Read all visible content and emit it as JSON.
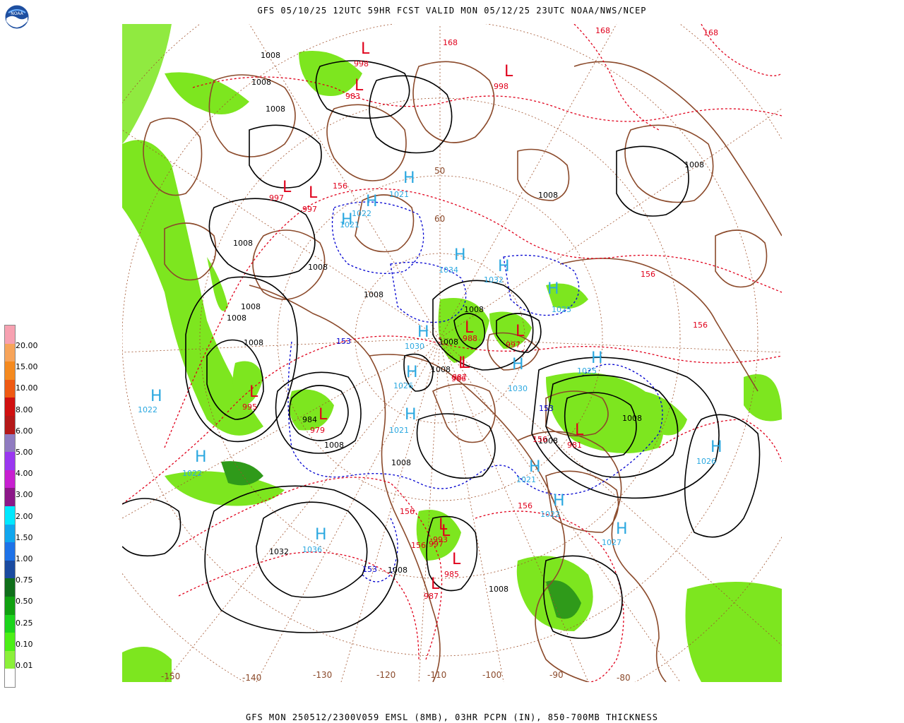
{
  "title": "GFS 05/10/25 12UTC 59HR FCST VALID MON 05/12/25 23UTC NOAA/NWS/NCEP",
  "footer": "GFS MON 250512/2300V059 EMSL (8MB), 03HR PCPN (IN), 850-700MB THICKNESS",
  "logo_text": "NOAA",
  "legend": {
    "labels": [
      "20.00",
      "15.00",
      "10.00",
      "8.00",
      "6.00",
      "5.00",
      "4.00",
      "3.00",
      "2.00",
      "1.50",
      "1.00",
      "0.75",
      "0.50",
      "0.25",
      "0.10",
      "0.01"
    ],
    "colors": [
      "#f7a1b1",
      "#f7a45a",
      "#f58a1f",
      "#ef5a13",
      "#d01010",
      "#b41818",
      "#8f7bc0",
      "#9a37f0",
      "#c71fd0",
      "#8c1788",
      "#00e8ff",
      "#10a6ee",
      "#1e72e8",
      "#1a4aa0",
      "#0f6e1a",
      "#10a010",
      "#1cd41c",
      "#4cef16",
      "#8cf03a",
      "#ffffff"
    ]
  },
  "colors": {
    "coast": "#8b4a2b",
    "precip": "#7de61f",
    "precip_dark": "#2f9a1a",
    "isobar": "#000000",
    "thickness_red": "#e0001b",
    "thickness_blue": "#0000d0",
    "high_label": "#2ba8e0",
    "low_label": "#e0001b",
    "graticule": "#a0522d"
  },
  "lon_labels": [
    "-150",
    "-140",
    "-130",
    "-120",
    "-110",
    "-100",
    "-90",
    "-80"
  ],
  "lat_labels": [
    "50",
    "60"
  ],
  "highs": [
    {
      "letter": "H",
      "value": "1022"
    },
    {
      "letter": "H",
      "value": "1022"
    },
    {
      "letter": "H",
      "value": "1036"
    },
    {
      "letter": "H",
      "value": "1021"
    },
    {
      "letter": "H",
      "value": "1026"
    },
    {
      "letter": "H",
      "value": "1030"
    },
    {
      "letter": "H",
      "value": "1032"
    },
    {
      "letter": "H",
      "value": "1034"
    },
    {
      "letter": "H",
      "value": "1025"
    },
    {
      "letter": "H",
      "value": "1025"
    },
    {
      "letter": "H",
      "value": "1026"
    },
    {
      "letter": "H",
      "value": "1027"
    },
    {
      "letter": "H",
      "value": "1022"
    },
    {
      "letter": "H",
      "value": "1021"
    },
    {
      "letter": "H",
      "value": "1021"
    },
    {
      "letter": "H",
      "value": "1022"
    },
    {
      "letter": "H",
      "value": "1021"
    },
    {
      "letter": "H",
      "value": "1030"
    }
  ],
  "lows": [
    {
      "letter": "L",
      "value": "995"
    },
    {
      "letter": "L",
      "value": "979"
    },
    {
      "letter": "L",
      "value": "988"
    },
    {
      "letter": "L",
      "value": "997"
    },
    {
      "letter": "L",
      "value": "987"
    },
    {
      "letter": "L",
      "value": "985"
    },
    {
      "letter": "L",
      "value": "987"
    },
    {
      "letter": "L",
      "value": "997"
    },
    {
      "letter": "L",
      "value": "993"
    },
    {
      "letter": "L",
      "value": "997"
    },
    {
      "letter": "L",
      "value": "997"
    },
    {
      "letter": "L",
      "value": "998"
    },
    {
      "letter": "L",
      "value": "998"
    },
    {
      "letter": "L",
      "value": "986"
    },
    {
      "letter": "L",
      "value": "981"
    },
    {
      "letter": "L",
      "value": "983"
    }
  ],
  "isobar_labels": [
    "1008",
    "1008",
    "1008",
    "1008",
    "1008",
    "1008",
    "1008",
    "1008",
    "1008",
    "1008",
    "1008",
    "1008",
    "1008",
    "1008",
    "1008",
    "1008",
    "1008",
    "1008",
    "1008",
    "1008",
    "1032",
    "984"
  ],
  "thickness_labels": [
    "156",
    "156",
    "156",
    "153",
    "153",
    "153",
    "156",
    "156",
    "168",
    "168",
    "168",
    "156",
    "156"
  ]
}
